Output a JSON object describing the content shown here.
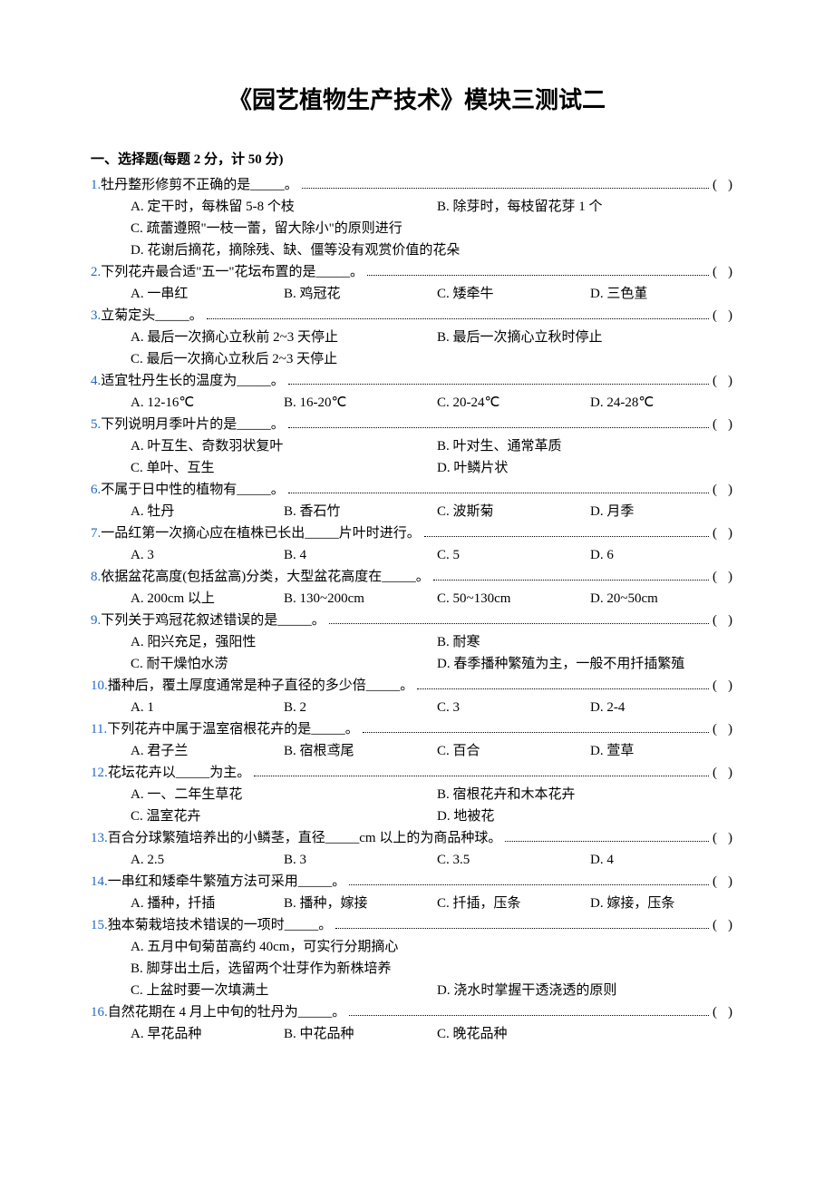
{
  "title": "《园艺植物生产技术》模块三测试二",
  "section_header": "一、选择题(每题 2 分，计 50 分)",
  "link_color": "#2169c4",
  "questions": [
    {
      "num": "1.",
      "text": "牡丹整形修剪不正确的是_____。",
      "layout": "custom",
      "opts": [
        {
          "t": "A. 定干时，每株留 5-8 个枝",
          "cls": "half"
        },
        {
          "t": "B. 除芽时，每枝留花芽 1 个",
          "cls": "half"
        },
        {
          "t": "C. 疏蕾遵照\"一枝一蕾，留大除小\"的原则进行",
          "cls": "wide"
        },
        {
          "t": "D. 花谢后摘花，摘除残、缺、僵等没有观赏价值的花朵",
          "cls": "wide"
        }
      ]
    },
    {
      "num": "2.",
      "text": "下列花卉最合适\"五一\"花坛布置的是_____。",
      "layout": "four-col",
      "opts": [
        {
          "t": "A. 一串红"
        },
        {
          "t": "B. 鸡冠花"
        },
        {
          "t": "C. 矮牵牛"
        },
        {
          "t": "D. 三色堇"
        }
      ]
    },
    {
      "num": "3.",
      "text": "立菊定头_____。",
      "layout": "custom",
      "opts": [
        {
          "t": "A. 最后一次摘心立秋前 2~3 天停止",
          "cls": "half"
        },
        {
          "t": "B. 最后一次摘心立秋时停止",
          "cls": "half"
        },
        {
          "t": "C. 最后一次摘心立秋后 2~3 天停止",
          "cls": "wide"
        }
      ]
    },
    {
      "num": "4.",
      "text": "适宜牡丹生长的温度为_____。",
      "layout": "four-col",
      "opts": [
        {
          "t": "A. 12-16℃"
        },
        {
          "t": "B. 16-20℃"
        },
        {
          "t": "C. 20-24℃"
        },
        {
          "t": "D. 24-28℃"
        }
      ]
    },
    {
      "num": "5.",
      "text": "下列说明月季叶片的是_____。",
      "layout": "two-col",
      "opts": [
        {
          "t": "A. 叶互生、奇数羽状复叶"
        },
        {
          "t": "B. 叶对生、通常革质"
        },
        {
          "t": "C. 单叶、互生"
        },
        {
          "t": "D. 叶鳞片状"
        }
      ]
    },
    {
      "num": "6.",
      "text": "不属于日中性的植物有_____。",
      "layout": "four-col",
      "opts": [
        {
          "t": "A. 牡丹"
        },
        {
          "t": "B. 香石竹"
        },
        {
          "t": "C. 波斯菊"
        },
        {
          "t": "D. 月季"
        }
      ]
    },
    {
      "num": "7.",
      "text": "一品红第一次摘心应在植株已长出_____片叶时进行。",
      "layout": "four-col",
      "opts": [
        {
          "t": "A. 3"
        },
        {
          "t": "B. 4"
        },
        {
          "t": "C. 5"
        },
        {
          "t": "D. 6"
        }
      ]
    },
    {
      "num": "8.",
      "text": "依据盆花高度(包括盆高)分类，大型盆花高度在_____。",
      "layout": "four-col",
      "opts": [
        {
          "t": "A. 200cm 以上"
        },
        {
          "t": "B. 130~200cm"
        },
        {
          "t": "C. 50~130cm"
        },
        {
          "t": "D. 20~50cm"
        }
      ]
    },
    {
      "num": "9.",
      "text": "下列关于鸡冠花叙述错误的是_____。",
      "layout": "two-col",
      "opts": [
        {
          "t": "A. 阳兴充足，强阳性"
        },
        {
          "t": "B. 耐寒"
        },
        {
          "t": "C. 耐干燥怕水涝"
        },
        {
          "t": "D. 春季播种繁殖为主，一般不用扦插繁殖"
        }
      ]
    },
    {
      "num": "10.",
      "text": "播种后，覆土厚度通常是种子直径的多少倍_____。",
      "layout": "four-col",
      "opts": [
        {
          "t": "A. 1"
        },
        {
          "t": "B. 2"
        },
        {
          "t": "C. 3"
        },
        {
          "t": "D. 2-4"
        }
      ]
    },
    {
      "num": "11.",
      "text": "下列花卉中属于温室宿根花卉的是_____。",
      "layout": "four-col",
      "opts": [
        {
          "t": "A. 君子兰"
        },
        {
          "t": "B. 宿根鸢尾"
        },
        {
          "t": "C. 百合"
        },
        {
          "t": "D. 萱草"
        }
      ]
    },
    {
      "num": "12.",
      "text": "花坛花卉以_____为主。",
      "layout": "two-col",
      "opts": [
        {
          "t": "A. 一、二年生草花"
        },
        {
          "t": "B. 宿根花卉和木本花卉"
        },
        {
          "t": "C. 温室花卉"
        },
        {
          "t": "D. 地被花"
        }
      ]
    },
    {
      "num": "13.",
      "text": "百合分球繁殖培养出的小鳞茎，直径_____cm 以上的为商品种球。",
      "layout": "four-col",
      "opts": [
        {
          "t": "A. 2.5"
        },
        {
          "t": "B. 3"
        },
        {
          "t": "C. 3.5"
        },
        {
          "t": "D. 4"
        }
      ]
    },
    {
      "num": "14.",
      "text": "一串红和矮牵牛繁殖方法可采用_____。",
      "layout": "four-col",
      "opts": [
        {
          "t": "A. 播种，扦插"
        },
        {
          "t": "B. 播种，嫁接"
        },
        {
          "t": "C. 扦插，压条"
        },
        {
          "t": "D. 嫁接，压条"
        }
      ]
    },
    {
      "num": "15.",
      "text": "独本菊栽培技术错误的一项时_____。",
      "layout": "custom",
      "opts": [
        {
          "t": "A. 五月中旬菊苗高约 40cm，可实行分期摘心",
          "cls": "wide"
        },
        {
          "t": "B. 脚芽出土后，选留两个壮芽作为新株培养",
          "cls": "wide"
        },
        {
          "t": "C. 上盆时要一次填满土",
          "cls": "half"
        },
        {
          "t": "D. 浇水时掌握干透浇透的原则",
          "cls": "half"
        }
      ]
    },
    {
      "num": "16.",
      "text": "自然花期在 4 月上中旬的牡丹为_____。",
      "layout": "four-col",
      "opts": [
        {
          "t": "A. 早花品种"
        },
        {
          "t": "B. 中花品种"
        },
        {
          "t": "C. 晚花品种"
        }
      ]
    }
  ]
}
